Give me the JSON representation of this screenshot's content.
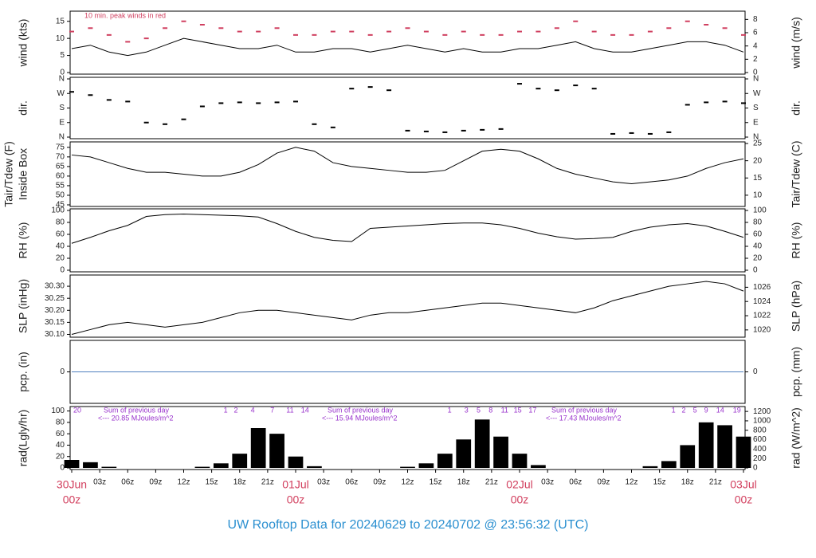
{
  "title": "UW Rooftop Data for 20240629  to  20240702 @ 23:56:32  (UTC)",
  "chart_data": [
    {
      "type": "line",
      "ylabel": [
        "wind (kts)"
      ],
      "y2label": "wind (m/s)",
      "annotation": "10 min. peak winds in red",
      "xlim": [
        0,
        72
      ],
      "ylim": [
        0,
        17.5
      ],
      "yticks": [
        0,
        5,
        10,
        15
      ],
      "y2lim": [
        0,
        9.0
      ],
      "y2ticks": [
        0,
        2,
        4,
        6,
        8
      ],
      "x": [
        0,
        2,
        4,
        6,
        8,
        10,
        12,
        14,
        16,
        18,
        20,
        22,
        24,
        26,
        28,
        30,
        32,
        34,
        36,
        38,
        40,
        42,
        44,
        46,
        48,
        50,
        52,
        54,
        56,
        58,
        60,
        62,
        64,
        66,
        68,
        70,
        72
      ],
      "series": [
        {
          "type": "line",
          "color": "#000000",
          "values": [
            7,
            8,
            6,
            5,
            6,
            8,
            10,
            9,
            8,
            7,
            7,
            8,
            6,
            6,
            7,
            7,
            6,
            7,
            8,
            7,
            6,
            7,
            6,
            6,
            7,
            7,
            8,
            9,
            7,
            6,
            6,
            7,
            8,
            9,
            9,
            8,
            6
          ]
        },
        {
          "type": "scatter",
          "color": "#d04060",
          "values": [
            12,
            13,
            11,
            9,
            10,
            13,
            15,
            14,
            13,
            12,
            12,
            13,
            11,
            11,
            12,
            12,
            11,
            12,
            13,
            12,
            11,
            12,
            11,
            11,
            12,
            12,
            13,
            15,
            12,
            11,
            11,
            12,
            13,
            15,
            14,
            13,
            11
          ]
        }
      ]
    },
    {
      "type": "scatter",
      "ylabel": [
        "dir."
      ],
      "y2label": "dir.",
      "xlim": [
        0,
        72
      ],
      "ylim": [
        0,
        360
      ],
      "yticks": [
        {
          "value": 0,
          "label": "N"
        },
        {
          "value": 90,
          "label": "E"
        },
        {
          "value": 180,
          "label": "S"
        },
        {
          "value": 270,
          "label": "W"
        },
        {
          "value": 360,
          "label": "N"
        }
      ],
      "y2lim": [
        0,
        360
      ],
      "y2ticks": [
        {
          "value": 0,
          "label": "N"
        },
        {
          "value": 90,
          "label": "E"
        },
        {
          "value": 180,
          "label": "S"
        },
        {
          "value": 270,
          "label": "W"
        },
        {
          "value": 360,
          "label": "N"
        }
      ],
      "x": [
        0,
        2,
        4,
        6,
        8,
        10,
        12,
        14,
        16,
        18,
        20,
        22,
        24,
        26,
        28,
        30,
        32,
        34,
        36,
        38,
        40,
        42,
        44,
        46,
        48,
        50,
        52,
        54,
        56,
        58,
        60,
        62,
        64,
        66,
        68,
        70,
        72
      ],
      "series": [
        {
          "type": "scatter",
          "color": "#000000",
          "values": [
            280,
            260,
            230,
            220,
            90,
            80,
            110,
            190,
            210,
            215,
            210,
            215,
            220,
            80,
            60,
            300,
            310,
            290,
            40,
            35,
            30,
            40,
            45,
            50,
            330,
            300,
            290,
            320,
            300,
            20,
            25,
            20,
            30,
            200,
            215,
            220,
            210
          ]
        }
      ]
    },
    {
      "type": "line",
      "ylabel": [
        "Tair/Tdew (F)",
        "Inside Box"
      ],
      "y2label": "Tair/Tdew (C)",
      "xlim": [
        0,
        72
      ],
      "ylim": [
        45,
        77
      ],
      "yticks": [
        45,
        50,
        55,
        60,
        65,
        70,
        75
      ],
      "y2lim": [
        7.2,
        25
      ],
      "y2ticks": [
        10,
        15,
        20,
        25
      ],
      "x": [
        0,
        2,
        4,
        6,
        8,
        10,
        12,
        14,
        16,
        18,
        20,
        22,
        24,
        26,
        28,
        30,
        32,
        34,
        36,
        38,
        40,
        42,
        44,
        46,
        48,
        50,
        52,
        54,
        56,
        58,
        60,
        62,
        64,
        66,
        68,
        70,
        72
      ],
      "series": [
        {
          "type": "line",
          "color": "#000000",
          "values": [
            71,
            70,
            67,
            64,
            62,
            62,
            61,
            60,
            60,
            62,
            66,
            72,
            75,
            73,
            67,
            65,
            64,
            63,
            62,
            62,
            63,
            68,
            73,
            74,
            73,
            69,
            64,
            61,
            59,
            57,
            56,
            57,
            58,
            60,
            64,
            67,
            69
          ]
        }
      ]
    },
    {
      "type": "line",
      "ylabel": [
        "RH (%)"
      ],
      "y2label": "RH (%)",
      "xlim": [
        0,
        72
      ],
      "ylim": [
        0,
        100
      ],
      "yticks": [
        0,
        20,
        40,
        60,
        80,
        100
      ],
      "y2lim": [
        0,
        100
      ],
      "y2ticks": [
        0,
        20,
        40,
        60,
        80,
        100
      ],
      "x": [
        0,
        2,
        4,
        6,
        8,
        10,
        12,
        14,
        16,
        18,
        20,
        22,
        24,
        26,
        28,
        30,
        32,
        34,
        36,
        38,
        40,
        42,
        44,
        46,
        48,
        50,
        52,
        54,
        56,
        58,
        60,
        62,
        64,
        66,
        68,
        70,
        72
      ],
      "series": [
        {
          "type": "line",
          "color": "#000000",
          "values": [
            45,
            55,
            66,
            75,
            90,
            93,
            94,
            93,
            92,
            91,
            89,
            78,
            65,
            55,
            50,
            48,
            70,
            72,
            74,
            76,
            78,
            79,
            79,
            76,
            70,
            62,
            56,
            52,
            53,
            55,
            65,
            72,
            76,
            78,
            74,
            65,
            55
          ]
        }
      ]
    },
    {
      "type": "line",
      "ylabel": [
        "SLP (inHg)"
      ],
      "y2label": "SLP (hPa)",
      "xlim": [
        0,
        72
      ],
      "ylim": [
        30.095,
        30.34
      ],
      "yticks": [
        {
          "value": 30.1,
          "label": "30.10"
        },
        {
          "value": 30.15,
          "label": "30.15"
        },
        {
          "value": 30.2,
          "label": "30.20"
        },
        {
          "value": 30.25,
          "label": "30.25"
        },
        {
          "value": 30.3,
          "label": "30.30"
        }
      ],
      "y2lim": [
        1019.2,
        1027.5
      ],
      "y2ticks": [
        1020,
        1022,
        1024,
        1026
      ],
      "x": [
        0,
        2,
        4,
        6,
        8,
        10,
        12,
        14,
        16,
        18,
        20,
        22,
        24,
        26,
        28,
        30,
        32,
        34,
        36,
        38,
        40,
        42,
        44,
        46,
        48,
        50,
        52,
        54,
        56,
        58,
        60,
        62,
        64,
        66,
        68,
        70,
        72
      ],
      "series": [
        {
          "type": "line",
          "color": "#000000",
          "values": [
            30.1,
            30.12,
            30.14,
            30.15,
            30.14,
            30.13,
            30.14,
            30.15,
            30.17,
            30.19,
            30.2,
            30.2,
            30.19,
            30.18,
            30.17,
            30.16,
            30.18,
            30.19,
            30.19,
            30.2,
            30.21,
            30.22,
            30.23,
            30.23,
            30.22,
            30.21,
            30.2,
            30.19,
            30.21,
            30.24,
            30.26,
            30.28,
            30.3,
            30.31,
            30.32,
            30.31,
            30.28
          ]
        }
      ]
    },
    {
      "type": "line",
      "ylabel": [
        "pcp. (in)"
      ],
      "y2label": "pcp. (mm)",
      "xlim": [
        0,
        72
      ],
      "ylim": [
        -1,
        1
      ],
      "yticks": [
        0
      ],
      "y2lim": [
        -1,
        1
      ],
      "y2ticks": [
        0
      ],
      "x": [
        0,
        72
      ],
      "series": [
        {
          "type": "line",
          "color": "#4f7fbf",
          "values": [
            0,
            0
          ]
        }
      ]
    },
    {
      "type": "bar",
      "ylabel": [
        "rad(Lgly/hr)"
      ],
      "y2label": "rad (W/m^2)",
      "xlim": [
        0,
        72
      ],
      "ylim": [
        0,
        105
      ],
      "yticks": [
        0,
        20,
        40,
        60,
        80,
        100
      ],
      "y2lim": [
        0,
        1270
      ],
      "y2ticks": [
        0,
        200,
        400,
        600,
        800,
        1000,
        1200
      ],
      "annotations": [
        [
          "Sum of previous day",
          "<--- 20.85 MJoules/m^2"
        ],
        [
          "Sum of previous day",
          "<--- 15.94 MJoules/m^2"
        ],
        [
          "Sum of previous day",
          "<--- 17.43 MJoules/m^2"
        ]
      ],
      "top_ticks": [
        {
          "value": 0.6,
          "label": "20"
        },
        {
          "value": 16.5,
          "label": "1"
        },
        {
          "value": 17.6,
          "label": "2"
        },
        {
          "value": 19.4,
          "label": "4"
        },
        {
          "value": 21.5,
          "label": "7"
        },
        {
          "value": 23.4,
          "label": "11"
        },
        {
          "value": 25,
          "label": "14"
        },
        {
          "value": 40.5,
          "label": "1"
        },
        {
          "value": 42.3,
          "label": "3"
        },
        {
          "value": 43.6,
          "label": "5"
        },
        {
          "value": 44.9,
          "label": "8"
        },
        {
          "value": 46.4,
          "label": "11"
        },
        {
          "value": 47.8,
          "label": "15"
        },
        {
          "value": 49.4,
          "label": "17"
        },
        {
          "value": 64.5,
          "label": "1"
        },
        {
          "value": 65.6,
          "label": "2"
        },
        {
          "value": 66.8,
          "label": "5"
        },
        {
          "value": 68,
          "label": "9"
        },
        {
          "value": 69.5,
          "label": "14"
        },
        {
          "value": 71.3,
          "label": "19"
        }
      ],
      "xticks": [
        {
          "value": 0,
          "label": "30Jun",
          "sublabel": "00z"
        },
        {
          "value": 3,
          "label": "03z"
        },
        {
          "value": 6,
          "label": "06z"
        },
        {
          "value": 9,
          "label": "09z"
        },
        {
          "value": 12,
          "label": "12z"
        },
        {
          "value": 15,
          "label": "15z"
        },
        {
          "value": 18,
          "label": "18z"
        },
        {
          "value": 21,
          "label": "21z"
        },
        {
          "value": 24,
          "label": "01Jul",
          "sublabel": "00z"
        },
        {
          "value": 27,
          "label": "03z"
        },
        {
          "value": 30,
          "label": "06z"
        },
        {
          "value": 33,
          "label": "09z"
        },
        {
          "value": 36,
          "label": "12z"
        },
        {
          "value": 39,
          "label": "15z"
        },
        {
          "value": 42,
          "label": "18z"
        },
        {
          "value": 45,
          "label": "21z"
        },
        {
          "value": 48,
          "label": "02Jul",
          "sublabel": "00z"
        },
        {
          "value": 51,
          "label": "03z"
        },
        {
          "value": 54,
          "label": "06z"
        },
        {
          "value": 57,
          "label": "09z"
        },
        {
          "value": 60,
          "label": "12z"
        },
        {
          "value": 63,
          "label": "15z"
        },
        {
          "value": 66,
          "label": "18z"
        },
        {
          "value": 69,
          "label": "21z"
        },
        {
          "value": 72,
          "label": "03Jul",
          "sublabel": "00z"
        }
      ],
      "x": [
        0,
        2,
        4,
        6,
        8,
        10,
        12,
        14,
        16,
        18,
        20,
        22,
        24,
        26,
        28,
        30,
        32,
        34,
        36,
        38,
        40,
        42,
        44,
        46,
        48,
        50,
        52,
        54,
        56,
        58,
        60,
        62,
        64,
        66,
        68,
        70,
        72
      ],
      "series": [
        {
          "type": "bar",
          "color": "#000000",
          "values": [
            14,
            10,
            2,
            0,
            0,
            0,
            0,
            2,
            8,
            25,
            70,
            60,
            20,
            3,
            0,
            0,
            0,
            0,
            2,
            8,
            25,
            50,
            85,
            55,
            25,
            5,
            0,
            0,
            0,
            0,
            0,
            3,
            12,
            40,
            80,
            75,
            55
          ]
        }
      ]
    }
  ]
}
